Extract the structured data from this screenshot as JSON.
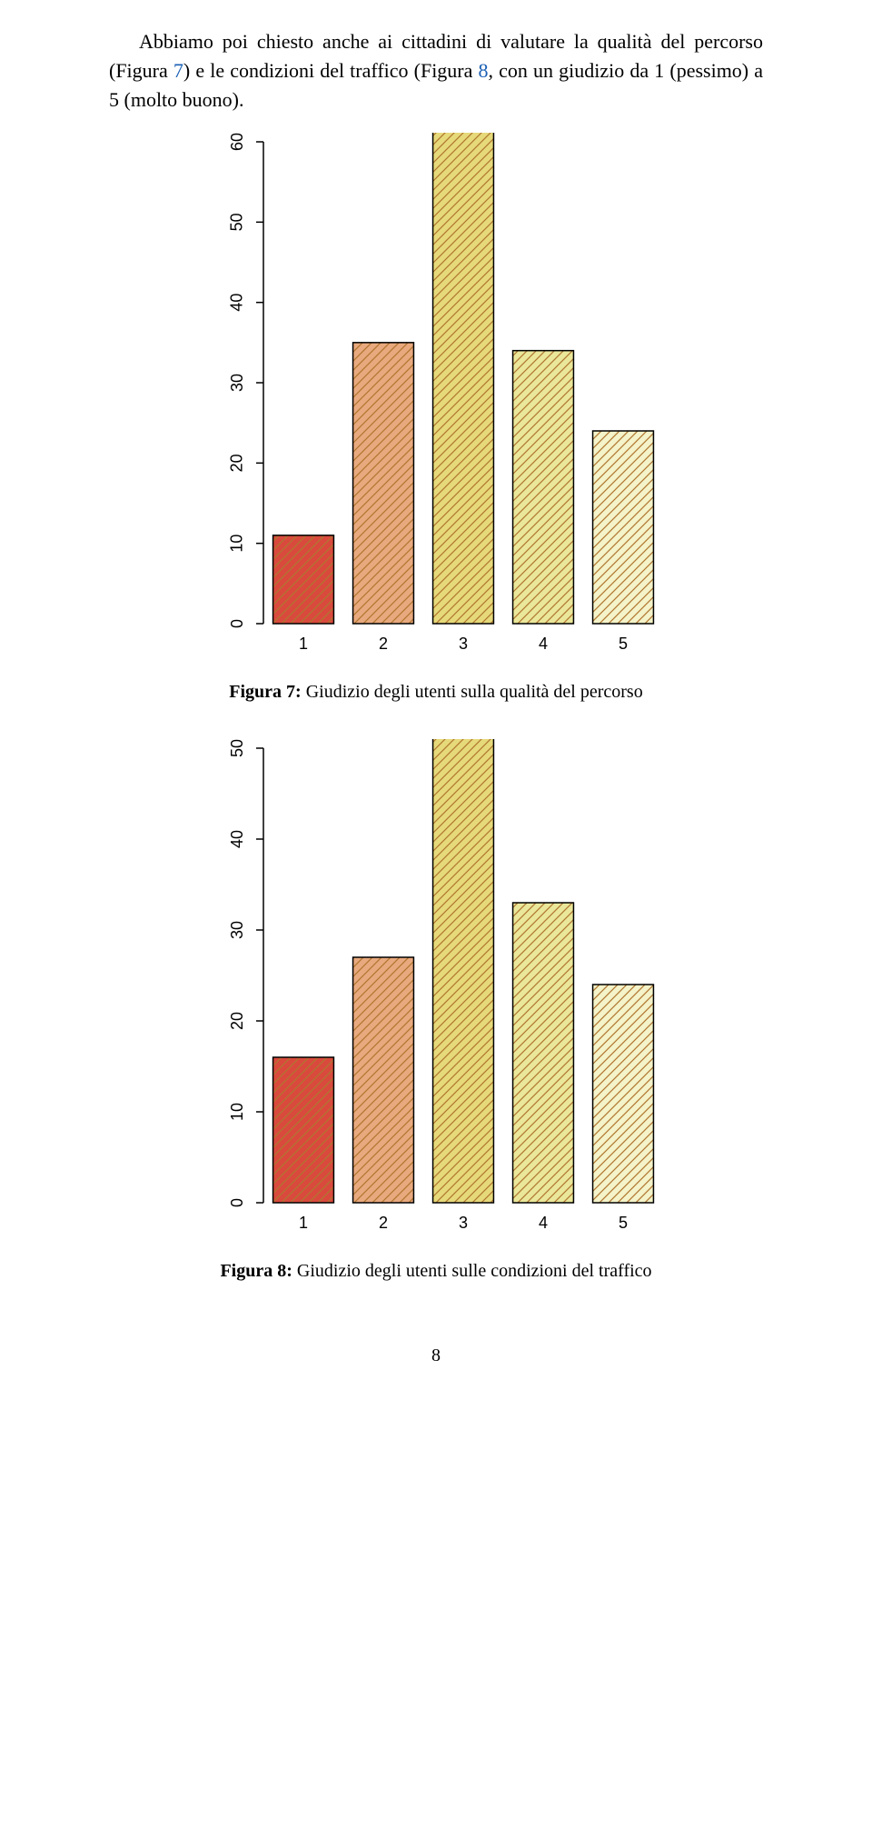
{
  "paragraph_parts": {
    "p1": "Abbiamo poi chiesto anche ai cittadini di valutare la qualità del percorso (Figura ",
    "link7": "7",
    "p2": ") e le condizioni del traffico (Figura ",
    "link8": "8",
    "p3": ", con un giudizio da 1 (pessimo) a 5 (molto buono)."
  },
  "captions": {
    "fig7_prefix": "Figura 7:",
    "fig7_text": " Giudizio degli utenti sulla qualità del percorso",
    "fig8_prefix": "Figura 8:",
    "fig8_text": " Giudizio degli utenti sulle condizioni del traffico"
  },
  "page_number": "8",
  "chart7": {
    "type": "bar",
    "categories": [
      "1",
      "2",
      "3",
      "4",
      "5"
    ],
    "values": [
      11,
      35,
      63,
      34,
      24
    ],
    "bar_colors": [
      "#d94a3d",
      "#e9a97e",
      "#e6d97a",
      "#eae79a",
      "#f4f3c9"
    ],
    "border_color": "#000000",
    "hatch": true,
    "ylim": [
      0,
      60
    ],
    "ytick_step": 10,
    "y_tick_labels": [
      "0",
      "10",
      "20",
      "30",
      "40",
      "50",
      "60"
    ],
    "background_color": "#ffffff",
    "tick_fontsize": 18,
    "axis_linewidth": 1.5,
    "bar_width_ratio": 0.76
  },
  "chart8": {
    "type": "bar",
    "categories": [
      "1",
      "2",
      "3",
      "4",
      "5"
    ],
    "values": [
      16,
      27,
      53,
      33,
      24
    ],
    "bar_colors": [
      "#d94a3d",
      "#e9a97e",
      "#e6d97a",
      "#eae79a",
      "#f4f3c9"
    ],
    "border_color": "#000000",
    "hatch": true,
    "ylim": [
      0,
      50
    ],
    "ytick_step": 10,
    "y_tick_labels": [
      "0",
      "10",
      "20",
      "30",
      "40",
      "50"
    ],
    "background_color": "#ffffff",
    "tick_fontsize": 18,
    "axis_linewidth": 1.5,
    "bar_width_ratio": 0.76
  }
}
